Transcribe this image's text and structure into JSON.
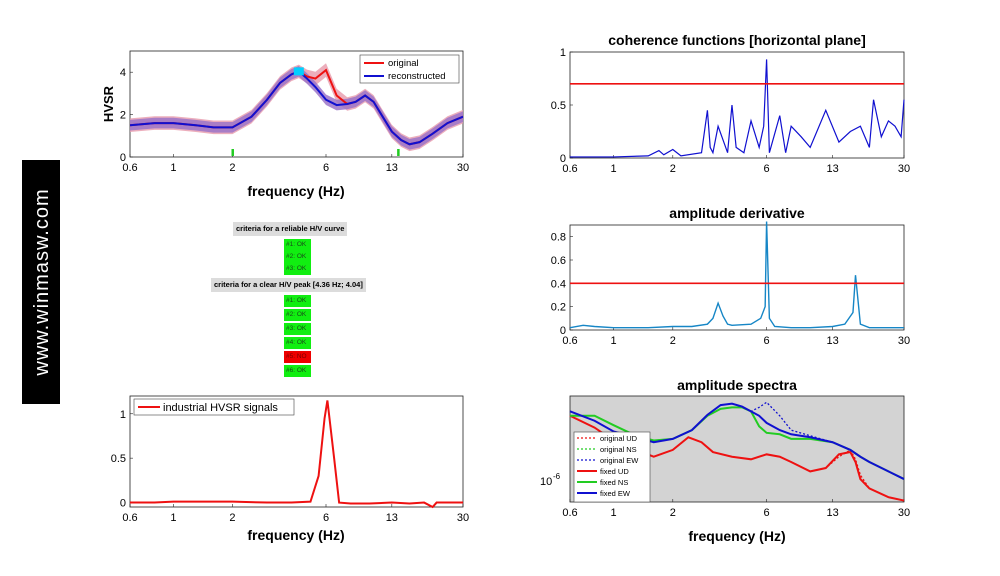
{
  "watermark": "www.winmasw.com",
  "colors": {
    "red": "#ee1111",
    "blue": "#1010d0",
    "shade_red": "#e9a0b0",
    "shade_blue": "#9c74c8",
    "panel_bg": "#d3d3d3",
    "green": "#22cc22",
    "cyan": "#1686c6"
  },
  "hvsr": {
    "ylabel": "HVSR",
    "xlabel": "frequency (Hz)",
    "xticks": [
      "0.6",
      "1",
      "2",
      "6",
      "13",
      "30"
    ],
    "yticks": [
      "0",
      "2",
      "4"
    ],
    "legend": [
      "original",
      "reconstructed"
    ]
  },
  "criteria": {
    "reliable_title": "criteria for a reliable H/V curve",
    "reliable": [
      {
        "label": "#1: OK",
        "ok": true
      },
      {
        "label": "#2: OK",
        "ok": true
      },
      {
        "label": "#3: OK",
        "ok": true
      }
    ],
    "peak_title": "criteria for a clear H/V peak [4.36 Hz; 4.04]",
    "peak": [
      {
        "label": "#1: OK",
        "ok": true
      },
      {
        "label": "#2: OK",
        "ok": true
      },
      {
        "label": "#3: OK",
        "ok": true
      },
      {
        "label": "#4: OK",
        "ok": true
      },
      {
        "label": "#5: NO",
        "ok": false
      },
      {
        "label": "#6: OK",
        "ok": true
      }
    ]
  },
  "industrial": {
    "xlabel": "frequency (Hz)",
    "xticks": [
      "0.6",
      "1",
      "2",
      "6",
      "13",
      "30"
    ],
    "yticks": [
      "0",
      "0.5",
      "1"
    ],
    "legend": [
      "industrial HVSR signals"
    ]
  },
  "coherence": {
    "title": "coherence functions [horizontal plane]",
    "xticks": [
      "0.6",
      "1",
      "2",
      "6",
      "13",
      "30"
    ],
    "yticks": [
      "0",
      "0.5",
      "1"
    ]
  },
  "derivative": {
    "title": "amplitude derivative",
    "xticks": [
      "0.6",
      "1",
      "2",
      "6",
      "13",
      "30"
    ],
    "yticks": [
      "0",
      "0.2",
      "0.4",
      "0.6",
      "0.8"
    ]
  },
  "spectra": {
    "title": "amplitude spectra",
    "xlabel": "frequency (Hz)",
    "xticks": [
      "0.6",
      "1",
      "2",
      "6",
      "13",
      "30"
    ],
    "ytick": "10",
    "ytick_exp": "-6",
    "legend": [
      "original UD",
      "original NS",
      "original EW",
      "fixed UD",
      "fixed NS",
      "fixed EW"
    ]
  },
  "chart_data": [
    {
      "type": "line",
      "ylabel": "HVSR",
      "xlabel": "frequency (Hz)",
      "xscale": "log",
      "xlim": [
        0.6,
        30
      ],
      "ylim": [
        0,
        5
      ],
      "legend_position": "top-right",
      "peak_marker": [
        4.36,
        4.04
      ],
      "green_ticks": [
        2.0,
        14.0
      ],
      "series": [
        {
          "name": "original",
          "x": [
            0.6,
            0.8,
            1,
            1.3,
            1.6,
            2,
            2.5,
            3,
            3.5,
            4,
            4.36,
            4.8,
            5.3,
            6,
            6.8,
            7.7,
            8.5,
            9.5,
            10.5,
            11.5,
            13,
            14.5,
            16,
            18,
            21,
            25,
            30
          ],
          "y": [
            1.5,
            1.6,
            1.6,
            1.5,
            1.4,
            1.4,
            1.9,
            2.7,
            3.5,
            3.9,
            4.04,
            3.8,
            3.7,
            4.1,
            2.9,
            2.5,
            2.6,
            2.9,
            2.6,
            2.0,
            1.2,
            0.8,
            0.6,
            0.7,
            1.1,
            1.6,
            1.9
          ]
        },
        {
          "name": "reconstructed",
          "x": [
            0.6,
            0.8,
            1,
            1.3,
            1.6,
            2,
            2.5,
            3,
            3.5,
            4,
            4.36,
            4.8,
            5.3,
            6,
            6.8,
            7.7,
            8.5,
            9.5,
            10.5,
            11.5,
            13,
            14.5,
            16,
            18,
            21,
            25,
            30
          ],
          "y": [
            1.5,
            1.6,
            1.6,
            1.5,
            1.4,
            1.4,
            1.9,
            2.7,
            3.5,
            3.9,
            4.04,
            3.7,
            3.3,
            2.7,
            2.45,
            2.5,
            2.6,
            2.9,
            2.6,
            2.0,
            1.2,
            0.8,
            0.6,
            0.7,
            1.1,
            1.6,
            1.9
          ]
        }
      ]
    },
    {
      "type": "line",
      "xlabel": "frequency (Hz)",
      "xscale": "log",
      "xlim": [
        0.6,
        30
      ],
      "ylim": [
        -0.05,
        1.2
      ],
      "legend_position": "top-left",
      "series": [
        {
          "name": "industrial HVSR signals",
          "x": [
            0.6,
            0.8,
            1,
            1.5,
            2,
            3,
            4,
            5,
            5.5,
            5.9,
            6.1,
            6.6,
            7,
            8,
            10,
            13,
            16,
            19,
            21,
            22,
            24,
            30
          ],
          "y": [
            0.0,
            0.0,
            0.01,
            0.01,
            0.01,
            0.0,
            0.0,
            0.01,
            0.3,
            0.95,
            1.15,
            0.5,
            0.0,
            -0.01,
            -0.01,
            0.0,
            -0.01,
            0.0,
            -0.05,
            0.0,
            0.0,
            0.0
          ]
        }
      ]
    },
    {
      "type": "line",
      "title": "coherence functions [horizontal plane]",
      "xscale": "log",
      "xlim": [
        0.6,
        30
      ],
      "ylim": [
        0,
        1
      ],
      "threshold": 0.7,
      "series": [
        {
          "x": [
            0.6,
            1,
            1.5,
            1.7,
            1.8,
            2,
            2.2,
            2.8,
            3,
            3.1,
            3.2,
            3.4,
            3.8,
            4,
            4.2,
            4.6,
            5,
            5.5,
            5.8,
            6,
            6.2,
            7,
            7.5,
            8,
            9,
            10,
            12,
            14,
            16,
            18,
            20,
            21,
            23,
            25,
            27,
            29,
            30
          ],
          "y": [
            0.01,
            0.01,
            0.02,
            0.07,
            0.03,
            0.08,
            0.02,
            0.05,
            0.45,
            0.1,
            0.05,
            0.3,
            0.05,
            0.5,
            0.1,
            0.05,
            0.35,
            0.1,
            0.3,
            0.93,
            0.05,
            0.4,
            0.05,
            0.3,
            0.2,
            0.1,
            0.45,
            0.15,
            0.25,
            0.3,
            0.1,
            0.55,
            0.2,
            0.35,
            0.3,
            0.2,
            0.55
          ]
        }
      ]
    },
    {
      "type": "line",
      "title": "amplitude derivative",
      "xscale": "log",
      "xlim": [
        0.6,
        30
      ],
      "ylim": [
        0,
        0.9
      ],
      "threshold": 0.4,
      "series": [
        {
          "x": [
            0.6,
            0.7,
            0.8,
            1,
            1.5,
            2,
            2.5,
            3,
            3.2,
            3.4,
            3.6,
            3.8,
            4,
            5,
            5.6,
            5.9,
            6,
            6.2,
            6.6,
            8,
            10,
            13,
            15,
            16.5,
            17,
            18,
            20,
            25,
            30
          ],
          "y": [
            0.02,
            0.04,
            0.03,
            0.02,
            0.02,
            0.03,
            0.03,
            0.05,
            0.1,
            0.23,
            0.12,
            0.05,
            0.04,
            0.05,
            0.1,
            0.2,
            0.93,
            0.1,
            0.03,
            0.02,
            0.02,
            0.03,
            0.05,
            0.15,
            0.47,
            0.05,
            0.02,
            0.02,
            0.02
          ]
        }
      ]
    },
    {
      "type": "line",
      "title": "amplitude spectra",
      "xlabel": "frequency (Hz)",
      "xscale": "log",
      "xlim": [
        0.6,
        30
      ],
      "yscale": "log",
      "legend_position": "bottom-left",
      "series": [
        {
          "name": "original UD",
          "x": [
            0.6,
            0.8,
            1,
            1.3,
            1.6,
            2,
            2.4,
            2.8,
            3.2,
            4,
            5,
            6,
            7,
            8,
            10,
            12,
            14,
            16,
            17,
            18,
            20,
            25,
            30
          ],
          "y": [
            4.5e-06,
            3.4e-06,
            2.5e-06,
            2e-06,
            1.7e-06,
            2e-06,
            2.7e-06,
            2.4e-06,
            1.9e-06,
            1.7e-06,
            1.6e-06,
            1.8e-06,
            1.7e-06,
            1.5e-06,
            1.2e-06,
            1.3e-06,
            1.7e-06,
            2e-06,
            1.6e-06,
            1.1e-06,
            8e-07,
            6.5e-07,
            6e-07
          ]
        },
        {
          "name": "original NS",
          "x": [
            0.6,
            0.8,
            1,
            1.3,
            1.6,
            2,
            2.5,
            3,
            3.5,
            4,
            4.5,
            5,
            5.5,
            6,
            7,
            8,
            10,
            13,
            16,
            18,
            20,
            25,
            30
          ],
          "y": [
            4.5e-06,
            4.5e-06,
            3.6e-06,
            2.8e-06,
            2.5e-06,
            2.6e-06,
            3.2e-06,
            4.5e-06,
            5.3e-06,
            5.5e-06,
            5.5e-06,
            5e-06,
            3.5e-06,
            3e-06,
            2.9e-06,
            2.6e-06,
            2.6e-06,
            2.4e-06,
            2e-06,
            1.7e-06,
            1.5e-06,
            1.2e-06,
            1e-06
          ]
        },
        {
          "name": "original EW",
          "x": [
            0.6,
            0.8,
            1,
            1.3,
            1.6,
            2,
            2.5,
            3,
            3.5,
            4,
            4.5,
            5,
            5.5,
            6,
            7,
            8,
            10,
            13,
            16,
            18,
            20,
            25,
            30
          ],
          "y": [
            5e-06,
            4e-06,
            3.1e-06,
            2.7e-06,
            2.4e-06,
            2.6e-06,
            3.2e-06,
            4.6e-06,
            5.8e-06,
            6e-06,
            5.6e-06,
            5e-06,
            5.5e-06,
            6.2e-06,
            4.5e-06,
            3.2e-06,
            2.8e-06,
            2.4e-06,
            2e-06,
            1.7e-06,
            1.5e-06,
            1.2e-06,
            1e-06
          ]
        },
        {
          "name": "fixed UD",
          "x": [
            0.6,
            0.8,
            1,
            1.3,
            1.6,
            2,
            2.4,
            2.8,
            3.2,
            4,
            5,
            6,
            7,
            8,
            10,
            12,
            14,
            16,
            17,
            18,
            20,
            25,
            30
          ],
          "y": [
            4.5e-06,
            3.4e-06,
            2.5e-06,
            2e-06,
            1.7e-06,
            2e-06,
            2.7e-06,
            2.4e-06,
            1.9e-06,
            1.7e-06,
            1.6e-06,
            1.8e-06,
            1.7e-06,
            1.5e-06,
            1.2e-06,
            1.3e-06,
            1.8e-06,
            1.9e-06,
            1.5e-06,
            1e-06,
            8e-07,
            6.5e-07,
            6e-07
          ]
        },
        {
          "name": "fixed NS",
          "x": [
            0.6,
            0.8,
            1,
            1.3,
            1.6,
            2,
            2.5,
            3,
            3.5,
            4,
            4.5,
            5,
            5.5,
            6,
            7,
            8,
            10,
            13,
            16,
            18,
            20,
            25,
            30
          ],
          "y": [
            4.5e-06,
            4.5e-06,
            3.6e-06,
            2.8e-06,
            2.5e-06,
            2.6e-06,
            3.2e-06,
            4.5e-06,
            5.3e-06,
            5.5e-06,
            5.5e-06,
            5e-06,
            3.5e-06,
            3e-06,
            2.9e-06,
            2.6e-06,
            2.6e-06,
            2.4e-06,
            2e-06,
            1.7e-06,
            1.5e-06,
            1.2e-06,
            1e-06
          ]
        },
        {
          "name": "fixed EW",
          "x": [
            0.6,
            0.8,
            1,
            1.3,
            1.6,
            2,
            2.5,
            3,
            3.5,
            4,
            4.5,
            5,
            5.5,
            6,
            7,
            8,
            10,
            13,
            16,
            18,
            20,
            25,
            30
          ],
          "y": [
            5e-06,
            4e-06,
            3.1e-06,
            2.7e-06,
            2.4e-06,
            2.6e-06,
            3.2e-06,
            4.6e-06,
            5.8e-06,
            6e-06,
            5.6e-06,
            5e-06,
            4.5e-06,
            3.8e-06,
            3.2e-06,
            2.9e-06,
            2.7e-06,
            2.4e-06,
            2e-06,
            1.7e-06,
            1.5e-06,
            1.2e-06,
            1e-06
          ]
        }
      ]
    }
  ]
}
